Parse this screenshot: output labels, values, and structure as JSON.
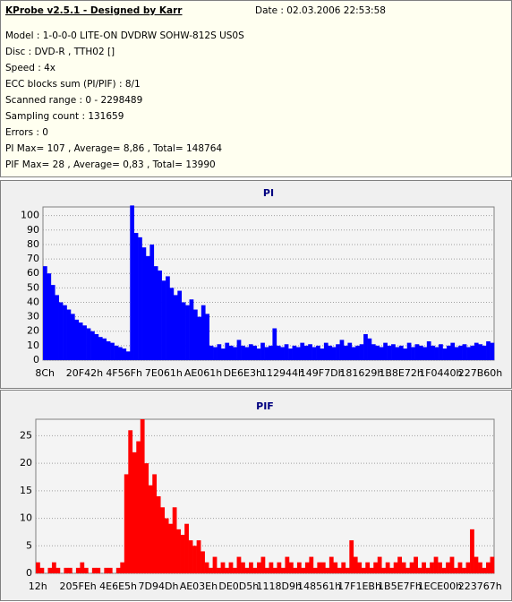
{
  "header": {
    "title": "KProbe v2.5.1 - Designed by Karr",
    "date": "Date : 02.03.2006 22:53:58",
    "lines": [
      "Model : 1-0-0-0 LITE-ON DVDRW SOHW-812S  US0S",
      "Disc : DVD-R , TTH02 []",
      "Speed : 4x",
      "ECC blocks sum (PI/PIF) : 8/1",
      "Scanned range : 0 - 2298489",
      "Sampling count : 131659",
      "Errors : 0",
      "PI Max= 107 , Average= 8,86 , Total= 148764",
      "PIF Max= 28 , Average= 0,83 , Total= 13990"
    ]
  },
  "chart_data": [
    {
      "type": "bar",
      "title": "PI",
      "color": "#0000ff",
      "grid": true,
      "ylim": [
        0,
        106
      ],
      "yticks": [
        0,
        10,
        20,
        30,
        40,
        50,
        60,
        70,
        80,
        90,
        100
      ],
      "categories": [
        "8Ch",
        null,
        null,
        null,
        null,
        null,
        null,
        null,
        null,
        null,
        "20F42h",
        null,
        null,
        null,
        null,
        null,
        null,
        null,
        null,
        null,
        "4F56Fh",
        null,
        null,
        null,
        null,
        null,
        null,
        null,
        null,
        null,
        "7E061h",
        null,
        null,
        null,
        null,
        null,
        null,
        null,
        null,
        null,
        "AE061h",
        null,
        null,
        null,
        null,
        null,
        null,
        null,
        null,
        null,
        "DE6E3h",
        null,
        null,
        null,
        null,
        null,
        null,
        null,
        null,
        null,
        "112944h",
        null,
        null,
        null,
        null,
        null,
        null,
        null,
        null,
        null,
        "149F7Dh",
        null,
        null,
        null,
        null,
        null,
        null,
        null,
        null,
        null,
        "181629h",
        null,
        null,
        null,
        null,
        null,
        null,
        null,
        null,
        null,
        "1B8E72h",
        null,
        null,
        null,
        null,
        null,
        null,
        null,
        null,
        null,
        "1F0440h",
        null,
        null,
        null,
        null,
        null,
        null,
        null,
        null,
        null,
        "227B60h",
        null,
        null,
        null
      ],
      "values": [
        65,
        60,
        52,
        45,
        40,
        38,
        35,
        32,
        28,
        26,
        24,
        22,
        20,
        18,
        16,
        15,
        13,
        12,
        10,
        9,
        8,
        6,
        107,
        88,
        85,
        78,
        72,
        80,
        65,
        62,
        55,
        58,
        50,
        45,
        48,
        40,
        38,
        42,
        35,
        30,
        38,
        32,
        10,
        9,
        11,
        8,
        12,
        10,
        9,
        14,
        10,
        9,
        11,
        10,
        8,
        12,
        9,
        10,
        22,
        10,
        9,
        11,
        8,
        10,
        9,
        12,
        10,
        11,
        9,
        10,
        8,
        12,
        10,
        9,
        11,
        14,
        10,
        12,
        9,
        10,
        11,
        18,
        15,
        11,
        10,
        9,
        12,
        10,
        11,
        9,
        10,
        8,
        12,
        9,
        11,
        10,
        9,
        13,
        10,
        9,
        11,
        8,
        10,
        12,
        9,
        10,
        11,
        9,
        10,
        12,
        11,
        10,
        13,
        12
      ]
    },
    {
      "type": "bar",
      "title": "PIF",
      "color": "#ff0000",
      "grid": true,
      "ylim": [
        0,
        28
      ],
      "yticks": [
        0,
        5,
        10,
        15,
        20,
        25
      ],
      "categories": [
        "12h",
        null,
        null,
        null,
        null,
        null,
        null,
        null,
        null,
        null,
        "205FEh",
        null,
        null,
        null,
        null,
        null,
        null,
        null,
        null,
        null,
        "4E6E5h",
        null,
        null,
        null,
        null,
        null,
        null,
        null,
        null,
        null,
        "7D94Dh",
        null,
        null,
        null,
        null,
        null,
        null,
        null,
        null,
        null,
        "AE03Eh",
        null,
        null,
        null,
        null,
        null,
        null,
        null,
        null,
        null,
        "DE0D5h",
        null,
        null,
        null,
        null,
        null,
        null,
        null,
        null,
        null,
        "1118D9h",
        null,
        null,
        null,
        null,
        null,
        null,
        null,
        null,
        null,
        "148561h",
        null,
        null,
        null,
        null,
        null,
        null,
        null,
        null,
        null,
        "17F1EBh",
        null,
        null,
        null,
        null,
        null,
        null,
        null,
        null,
        null,
        "1B5E7Fh",
        null,
        null,
        null,
        null,
        null,
        null,
        null,
        null,
        null,
        "1ECE00h",
        null,
        null,
        null,
        null,
        null,
        null,
        null,
        null,
        null,
        "223767h",
        null,
        null,
        null
      ],
      "values": [
        2,
        1,
        0,
        1,
        2,
        1,
        0,
        1,
        1,
        0,
        1,
        2,
        1,
        0,
        1,
        1,
        0,
        1,
        1,
        0,
        1,
        2,
        18,
        26,
        22,
        24,
        28,
        20,
        16,
        18,
        14,
        12,
        10,
        9,
        12,
        8,
        7,
        9,
        6,
        5,
        6,
        4,
        2,
        1,
        3,
        1,
        2,
        1,
        2,
        1,
        3,
        2,
        1,
        2,
        1,
        2,
        3,
        1,
        2,
        1,
        2,
        1,
        3,
        2,
        1,
        2,
        1,
        2,
        3,
        1,
        2,
        2,
        1,
        3,
        2,
        1,
        2,
        1,
        6,
        3,
        2,
        1,
        2,
        1,
        2,
        3,
        1,
        2,
        1,
        2,
        3,
        2,
        1,
        2,
        3,
        1,
        2,
        1,
        2,
        3,
        2,
        1,
        2,
        3,
        1,
        2,
        1,
        2,
        8,
        3,
        2,
        1,
        2,
        3
      ]
    }
  ]
}
